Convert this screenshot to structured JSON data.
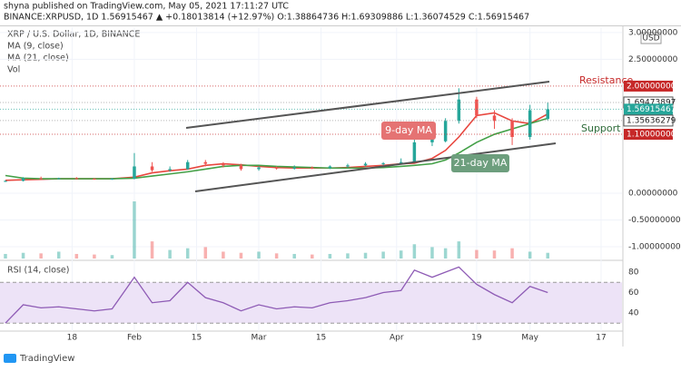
{
  "header": {
    "published": "shyna published on TradingView.com, May 05, 2021 17:11:27 UTC",
    "symbol_line": "BINANCE:XRPUSD, 1D 1.56915467 ▲ +0.18013814 (+12.97%) O:1.38864736 H:1.69309886 L:1.36074529 C:1.56915467",
    "currency": "USD",
    "footer": "TradingView"
  },
  "chart_data": [
    {
      "type": "candlestick",
      "title": "XRP / U.S. Dollar, 1D, BINANCE",
      "x": [
        3,
        7,
        11,
        15,
        19,
        23,
        27,
        32,
        36,
        40,
        44,
        48,
        52,
        56,
        60,
        64,
        68,
        72,
        76,
        80,
        84,
        88,
        92,
        95,
        99,
        102,
        105,
        109,
        113,
        117,
        121,
        125
      ],
      "open": [
        0.22,
        0.23,
        0.28,
        0.27,
        0.28,
        0.27,
        0.26,
        0.27,
        0.5,
        0.43,
        0.45,
        0.58,
        0.55,
        0.52,
        0.45,
        0.48,
        0.46,
        0.48,
        0.47,
        0.5,
        0.52,
        0.55,
        0.56,
        0.58,
        0.95,
        0.97,
        1.35,
        1.75,
        1.45,
        1.35,
        1.05,
        1.38864736
      ],
      "high": [
        0.24,
        0.3,
        0.31,
        0.29,
        0.3,
        0.28,
        0.28,
        0.75,
        0.58,
        0.5,
        0.62,
        0.62,
        0.58,
        0.55,
        0.5,
        0.5,
        0.52,
        0.5,
        0.52,
        0.55,
        0.58,
        0.58,
        0.65,
        1.0,
        1.15,
        1.4,
        1.96,
        1.8,
        1.55,
        1.4,
        1.65,
        1.69309886
      ],
      "low": [
        0.21,
        0.22,
        0.26,
        0.26,
        0.27,
        0.25,
        0.25,
        0.26,
        0.4,
        0.4,
        0.44,
        0.5,
        0.48,
        0.42,
        0.42,
        0.44,
        0.44,
        0.45,
        0.45,
        0.48,
        0.5,
        0.52,
        0.55,
        0.57,
        0.88,
        0.95,
        1.3,
        1.4,
        1.2,
        0.9,
        1.0,
        1.36074529
      ],
      "close": [
        0.23,
        0.28,
        0.27,
        0.28,
        0.27,
        0.26,
        0.27,
        0.5,
        0.43,
        0.45,
        0.58,
        0.55,
        0.52,
        0.45,
        0.48,
        0.46,
        0.48,
        0.47,
        0.5,
        0.52,
        0.55,
        0.56,
        0.58,
        0.95,
        1.05,
        1.35,
        1.75,
        1.45,
        1.35,
        1.05,
        1.55,
        1.56915467
      ],
      "up_color": "#26a69a",
      "down_color": "#ef5350",
      "series": [
        {
          "name": "MA (9, close)",
          "color": "#e8473f",
          "values": [
            0.24,
            0.25,
            0.26,
            0.27,
            0.27,
            0.27,
            0.27,
            0.3,
            0.38,
            0.42,
            0.45,
            0.52,
            0.55,
            0.53,
            0.5,
            0.48,
            0.47,
            0.47,
            0.47,
            0.48,
            0.5,
            0.52,
            0.55,
            0.56,
            0.65,
            0.8,
            1.05,
            1.45,
            1.5,
            1.35,
            1.3,
            1.48
          ]
        },
        {
          "name": "MA (21, close)",
          "color": "#43a047",
          "values": [
            0.33,
            0.28,
            0.27,
            0.27,
            0.27,
            0.27,
            0.27,
            0.28,
            0.32,
            0.36,
            0.4,
            0.45,
            0.5,
            0.52,
            0.52,
            0.5,
            0.49,
            0.48,
            0.47,
            0.47,
            0.47,
            0.48,
            0.5,
            0.52,
            0.55,
            0.62,
            0.75,
            0.95,
            1.1,
            1.2,
            1.3,
            1.4
          ]
        }
      ],
      "volume": {
        "name": "Vol",
        "values": [
          8,
          10,
          9,
          12,
          8,
          7,
          6,
          100,
          30,
          15,
          18,
          20,
          12,
          10,
          12,
          9,
          8,
          7,
          8,
          9,
          10,
          12,
          14,
          25,
          20,
          18,
          30,
          15,
          14,
          18,
          12,
          10
        ],
        "ylim": [
          0,
          100
        ]
      },
      "xlim": [
        2.8,
        141.7
      ],
      "xticks": [
        {
          "value": 18,
          "label": "18"
        },
        {
          "value": 32,
          "label": "Feb"
        },
        {
          "value": 46,
          "label": "15"
        },
        {
          "value": 60,
          "label": "Mar"
        },
        {
          "value": 74,
          "label": "15"
        },
        {
          "value": 91,
          "label": "Apr"
        },
        {
          "value": 109,
          "label": "19"
        },
        {
          "value": 121,
          "label": "May"
        },
        {
          "value": 137,
          "label": "17"
        }
      ],
      "ylim": [
        -1.22,
        3.1
      ],
      "yticks": [
        {
          "value": 3,
          "label": "3.00000000"
        },
        {
          "value": 2.5,
          "label": "2.50000000"
        },
        {
          "value": 0,
          "label": "0.00000000"
        },
        {
          "value": -0.5,
          "label": "-0.50000000"
        },
        {
          "value": -1,
          "label": "-1.00000000"
        }
      ],
      "price_tags": [
        {
          "value": 2,
          "label": "2.00000000",
          "color": "#c62828"
        },
        {
          "value": 1.69473897,
          "label": "1.69473897",
          "color": "#ffffff"
        },
        {
          "value": 1.56915467,
          "label": "1.56915467",
          "color": "#26a69a",
          "sublabel": "06:48:35"
        },
        {
          "value": 1.35636279,
          "label": "1.35636279",
          "color": "#ffffff"
        },
        {
          "value": 1.1,
          "label": "1.10000000",
          "color": "#c62828"
        }
      ],
      "annotations": {
        "resistance": "Resistance",
        "support": "Support",
        "ma9": "9-day MA",
        "ma21": "21-day MA"
      }
    },
    {
      "type": "line",
      "title": "RSI (14, close)",
      "x": [
        3,
        7,
        11,
        15,
        19,
        23,
        27,
        32,
        36,
        40,
        44,
        48,
        52,
        56,
        60,
        64,
        68,
        72,
        76,
        80,
        84,
        88,
        92,
        95,
        99,
        102,
        105,
        109,
        113,
        117,
        121,
        125
      ],
      "values": [
        30,
        48,
        45,
        46,
        44,
        42,
        44,
        75,
        50,
        52,
        70,
        55,
        50,
        42,
        48,
        44,
        46,
        45,
        50,
        52,
        55,
        60,
        62,
        82,
        75,
        80,
        85,
        68,
        58,
        50,
        66,
        60
      ],
      "color": "#8e5bb5",
      "band": [
        30,
        70
      ],
      "band_color": "#ede3f7",
      "xlim": [
        2.8,
        141.7
      ],
      "ylim": [
        22.2,
        88.9
      ],
      "yticks": [
        80,
        60,
        40
      ]
    }
  ]
}
